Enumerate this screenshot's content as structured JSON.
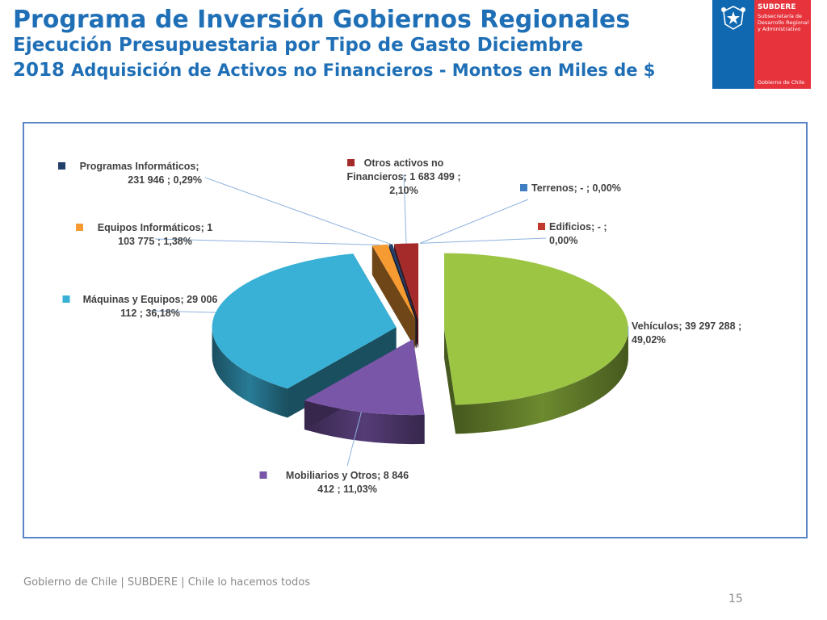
{
  "header": {
    "title_line1": "Programa de Inversión Gobiernos Regionales",
    "title_line2": "Ejecución Presupuestaria por Tipo de Gasto Diciembre",
    "title_line3_year": "2018",
    "title_line3_rest": "Adquisición de Activos no Financieros - Montos en Miles de $"
  },
  "logo": {
    "org": "SUBDERE",
    "subtitle": "Subsecretaría de Desarrollo Regional y Administrativo",
    "gov": "Gobierno de Chile",
    "colors": {
      "blue": "#0f68b0",
      "red": "#e6333c"
    }
  },
  "chart_data": {
    "type": "pie",
    "style": "3d-exploded",
    "legend": "none",
    "slices": [
      {
        "label": "Vehículos;  39 297 288 ; 49,02%",
        "value": 39297288,
        "percent": 49.02,
        "color": "#9bc543"
      },
      {
        "label": "Mobiliarios y Otros;  8 846 412 ; 11,03%",
        "value": 8846412,
        "percent": 11.03,
        "color": "#7a56a8"
      },
      {
        "label": "Máquinas y Equipos;  29 006 112 ; 36,18%",
        "value": 29006112,
        "percent": 36.18,
        "color": "#39b0d6"
      },
      {
        "label": "Equipos Informáticos;  1 103 775 ; 1,38%",
        "value": 1103775,
        "percent": 1.38,
        "color": "#f59b32"
      },
      {
        "label": "Programas Informáticos;  231 946 ; 0,29%",
        "value": 231946,
        "percent": 0.29,
        "color": "#243f6b"
      },
      {
        "label": "Otros activos no Financieros;  1 683 499 ; 2,10%",
        "value": 1683499,
        "percent": 2.1,
        "color": "#a52b2b"
      },
      {
        "label": "Terrenos;  -    ; 0,00%",
        "value": 0,
        "percent": 0.0,
        "color": "#3f7fc1"
      },
      {
        "label": "Edificios;  -    ; 0,00%",
        "value": 0,
        "percent": 0.0,
        "color": "#c0392b"
      }
    ]
  },
  "footer": {
    "text": "Gobierno de Chile | SUBDERE | Chile lo hacemos todos",
    "page": "15"
  }
}
